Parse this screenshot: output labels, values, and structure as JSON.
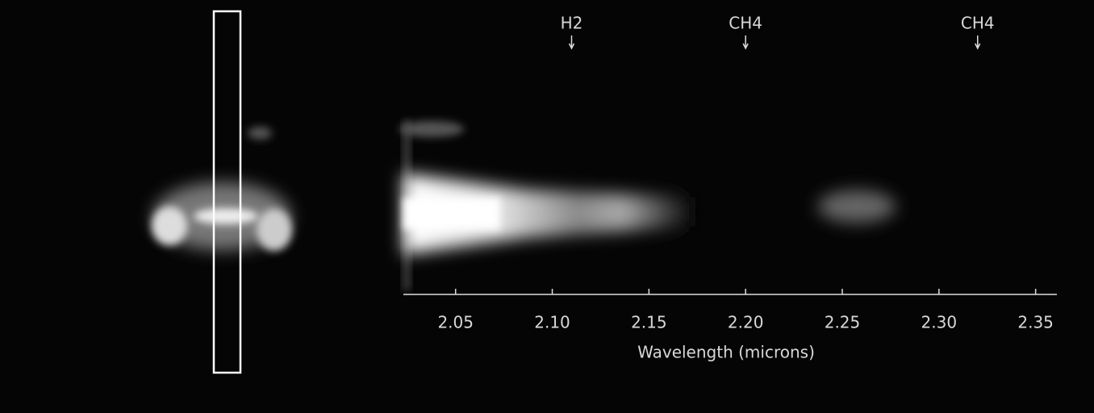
{
  "chart_data": {
    "type": "image",
    "x_label": "Wavelength (microns)",
    "xlim": [
      2.023,
      2.361
    ],
    "xticks": [
      2.05,
      {
        "value": 2.1,
        "label": "2.10"
      },
      2.15,
      {
        "value": 2.2,
        "label": "2.20"
      },
      2.25,
      {
        "value": 2.3,
        "label": "2.30"
      },
      2.35
    ],
    "annotations": [
      {
        "text": "H2",
        "x": 2.11
      },
      {
        "text": "CH4",
        "x": 2.2
      },
      {
        "text": "CH4",
        "x": 2.32
      }
    ]
  }
}
